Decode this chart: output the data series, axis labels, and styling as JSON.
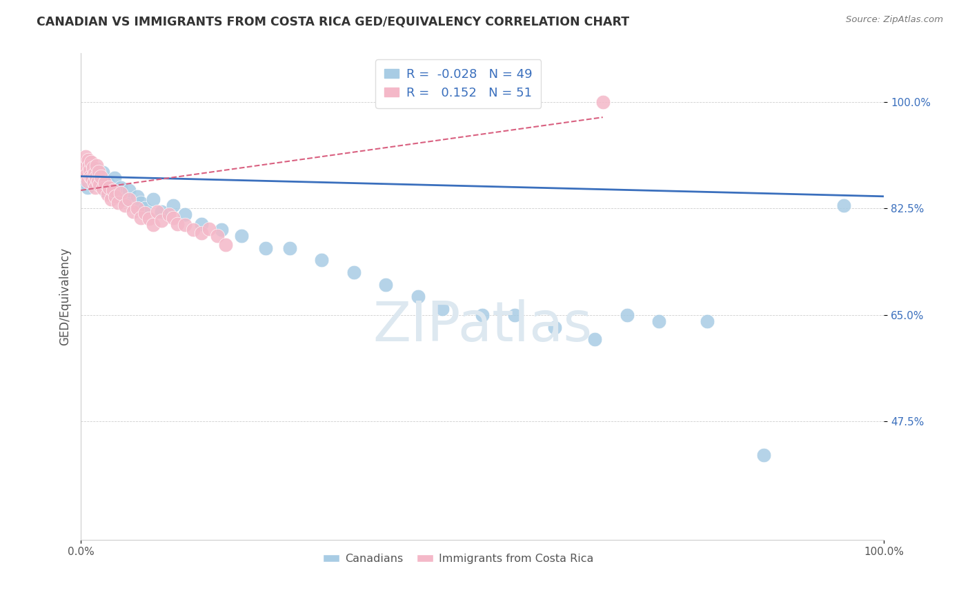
{
  "title": "CANADIAN VS IMMIGRANTS FROM COSTA RICA GED/EQUIVALENCY CORRELATION CHART",
  "source": "Source: ZipAtlas.com",
  "ylabel": "GED/Equivalency",
  "xlim": [
    0.0,
    1.0
  ],
  "ylim": [
    0.28,
    1.08
  ],
  "yticks": [
    0.475,
    0.65,
    0.825,
    1.0
  ],
  "ytick_labels": [
    "47.5%",
    "65.0%",
    "82.5%",
    "100.0%"
  ],
  "canadians_R": -0.028,
  "canadians_N": 49,
  "immigrants_R": 0.152,
  "immigrants_N": 51,
  "canadian_color": "#a8cce4",
  "immigrant_color": "#f4b8c8",
  "canadian_line_color": "#3a6fbd",
  "immigrant_line_color": "#d96080",
  "background_color": "#ffffff",
  "canadians_x": [
    0.003,
    0.005,
    0.007,
    0.008,
    0.01,
    0.012,
    0.013,
    0.014,
    0.015,
    0.016,
    0.018,
    0.019,
    0.02,
    0.022,
    0.025,
    0.027,
    0.03,
    0.033,
    0.038,
    0.042,
    0.05,
    0.055,
    0.06,
    0.07,
    0.075,
    0.08,
    0.09,
    0.1,
    0.115,
    0.13,
    0.15,
    0.175,
    0.2,
    0.23,
    0.26,
    0.3,
    0.34,
    0.38,
    0.42,
    0.45,
    0.5,
    0.54,
    0.59,
    0.64,
    0.68,
    0.72,
    0.78,
    0.85,
    0.95
  ],
  "canadians_y": [
    0.87,
    0.89,
    0.875,
    0.86,
    0.885,
    0.895,
    0.878,
    0.868,
    0.882,
    0.872,
    0.88,
    0.865,
    0.89,
    0.875,
    0.87,
    0.885,
    0.855,
    0.868,
    0.85,
    0.875,
    0.86,
    0.84,
    0.855,
    0.845,
    0.835,
    0.825,
    0.84,
    0.82,
    0.83,
    0.815,
    0.8,
    0.79,
    0.78,
    0.76,
    0.76,
    0.74,
    0.72,
    0.7,
    0.68,
    0.66,
    0.65,
    0.65,
    0.63,
    0.61,
    0.65,
    0.64,
    0.64,
    0.42,
    0.83
  ],
  "immigrants_x": [
    0.002,
    0.004,
    0.005,
    0.006,
    0.007,
    0.008,
    0.009,
    0.01,
    0.011,
    0.012,
    0.013,
    0.014,
    0.015,
    0.016,
    0.017,
    0.018,
    0.019,
    0.02,
    0.021,
    0.022,
    0.023,
    0.025,
    0.027,
    0.03,
    0.033,
    0.035,
    0.038,
    0.04,
    0.043,
    0.046,
    0.05,
    0.055,
    0.06,
    0.065,
    0.07,
    0.075,
    0.08,
    0.085,
    0.09,
    0.095,
    0.1,
    0.11,
    0.115,
    0.12,
    0.13,
    0.14,
    0.15,
    0.16,
    0.17,
    0.18,
    0.65
  ],
  "immigrants_y": [
    0.9,
    0.885,
    0.895,
    0.91,
    0.88,
    0.87,
    0.905,
    0.895,
    0.888,
    0.878,
    0.902,
    0.875,
    0.892,
    0.868,
    0.882,
    0.86,
    0.876,
    0.896,
    0.87,
    0.886,
    0.864,
    0.878,
    0.858,
    0.868,
    0.848,
    0.86,
    0.84,
    0.855,
    0.845,
    0.835,
    0.85,
    0.83,
    0.84,
    0.82,
    0.825,
    0.81,
    0.818,
    0.808,
    0.798,
    0.82,
    0.805,
    0.815,
    0.81,
    0.8,
    0.798,
    0.79,
    0.785,
    0.792,
    0.78,
    0.765,
    1.0
  ],
  "can_trend_x": [
    0.0,
    1.0
  ],
  "can_trend_y": [
    0.878,
    0.845
  ],
  "imm_trend_x": [
    0.0,
    0.65
  ],
  "imm_trend_y": [
    0.855,
    0.975
  ],
  "watermark_text": "ZIPatlas",
  "watermark_color": "#dde8f0",
  "legend1_label": "R =  -0.028   N = 49",
  "legend2_label": "R =   0.152   N = 51",
  "bottom_legend1": "Canadians",
  "bottom_legend2": "Immigrants from Costa Rica"
}
